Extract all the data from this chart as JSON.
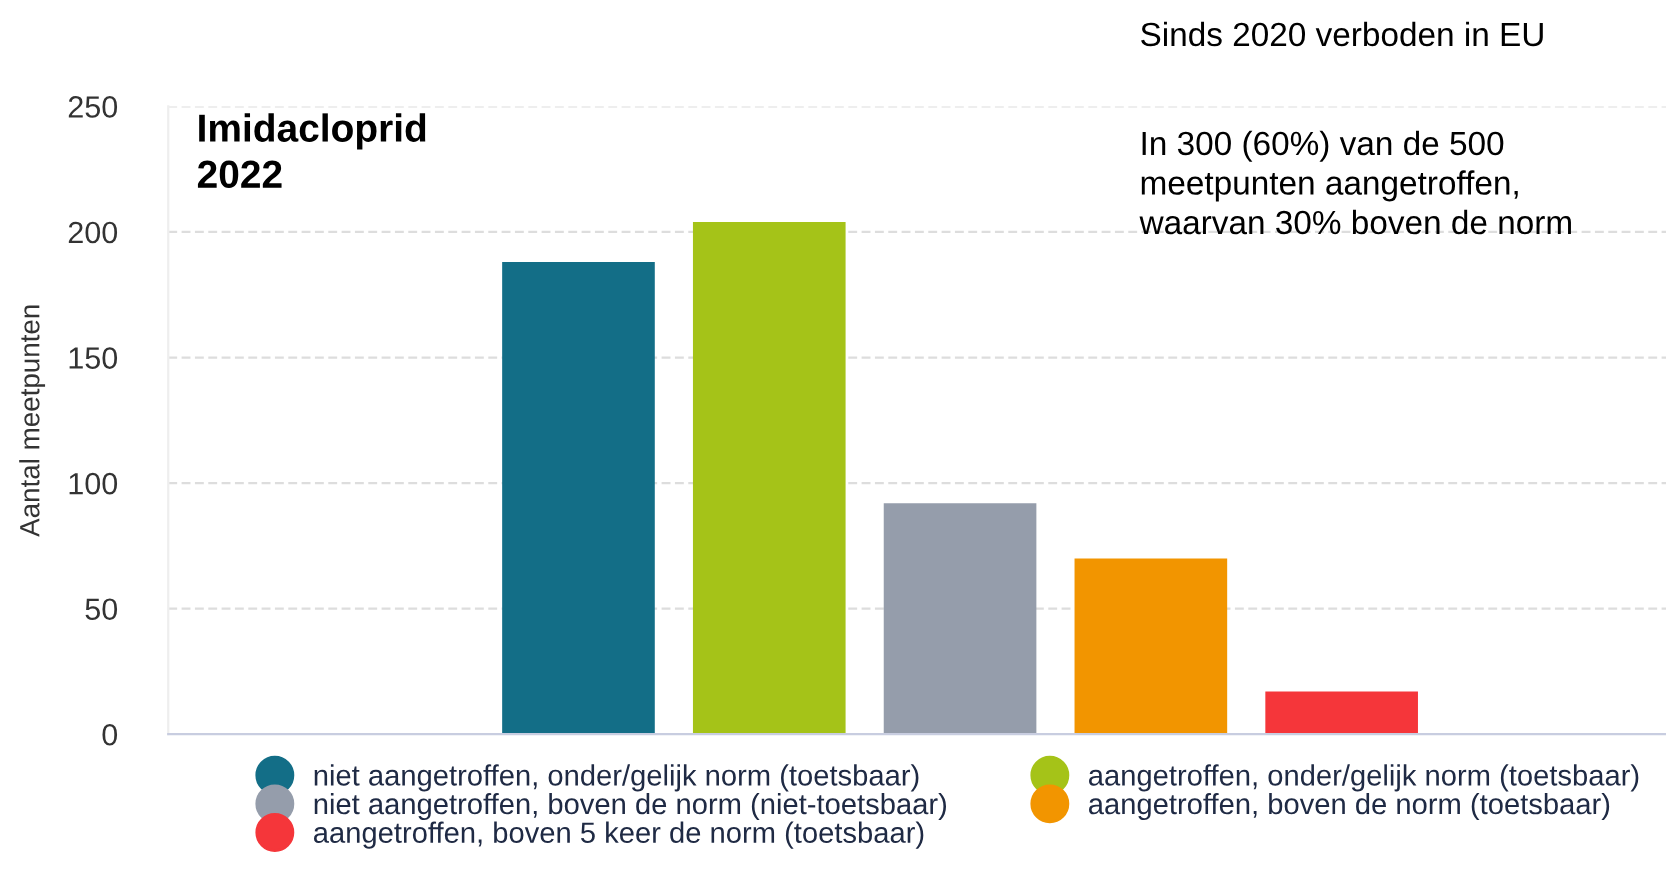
{
  "chart_data": {
    "type": "bar",
    "ylabel": "Aantal meetpunten",
    "categories": [
      null,
      null,
      null,
      null,
      null,
      null,
      null,
      null
    ],
    "series": [
      {
        "name": "niet aangetroffen, onder/gelijk norm (toetsbaar)",
        "color": "#136e87",
        "values": [
          null,
          null,
          188,
          null,
          null,
          null,
          null,
          null
        ]
      },
      {
        "name": "aangetroffen, onder/gelijk norm (toetsbaar)",
        "color": "#a5c318",
        "values": [
          null,
          null,
          null,
          204,
          null,
          null,
          null,
          null
        ]
      },
      {
        "name": "niet aangetroffen, boven de norm (niet-toetsbaar)",
        "color": "#959dab",
        "values": [
          null,
          null,
          null,
          null,
          92,
          null,
          null,
          null
        ]
      },
      {
        "name": "aangetroffen, boven de norm (toetsbaar)",
        "color": "#f29500",
        "values": [
          null,
          null,
          null,
          null,
          null,
          70,
          null,
          null
        ]
      },
      {
        "name": "aangetroffen, boven 5 keer de norm (toetsbaar)",
        "color": "#f5363a",
        "values": [
          null,
          null,
          null,
          null,
          null,
          null,
          17,
          null
        ]
      }
    ],
    "ylim": [
      0,
      250
    ],
    "yticks": [
      0,
      50,
      100,
      150,
      200,
      250
    ],
    "grid": "y",
    "legend": "bottom",
    "annotations": [
      "Imidacloprid\n2022",
      "Sinds 2020 verboden in EU",
      "In 300 (60%) van de 500\nmeetpunten aangetroffen,\nwaarvan 30% boven de norm"
    ]
  }
}
